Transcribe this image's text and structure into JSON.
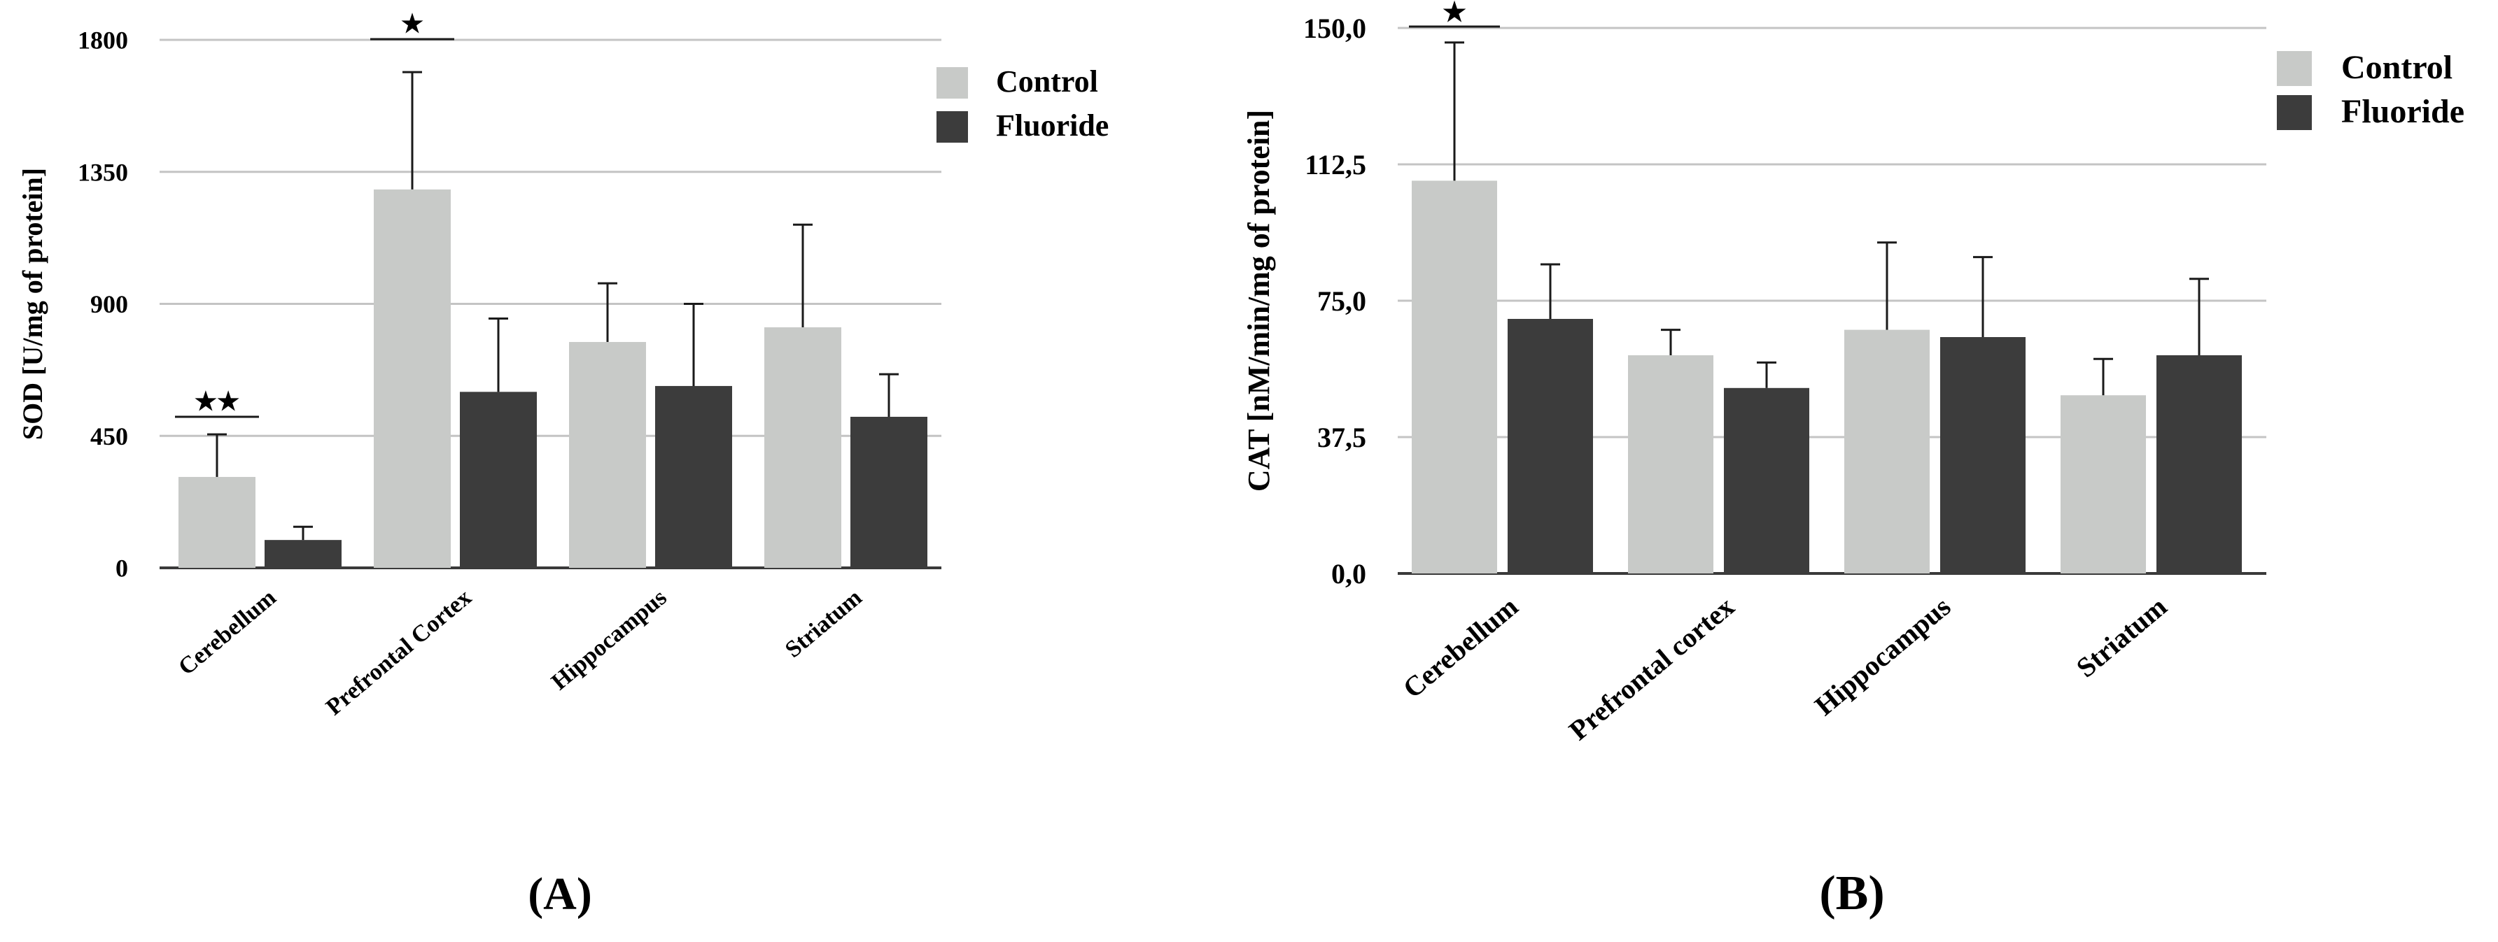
{
  "colors": {
    "control": "#c8cac8",
    "fluoride": "#3c3c3c",
    "grid": "#c4c4c4",
    "axis": "#3a3a3a",
    "error": "#1a1a1a"
  },
  "chart_data": [
    {
      "type": "bar",
      "panel_label": "(A)",
      "panel_letter": "A",
      "title": "",
      "xlabel": "",
      "ylabel": "SOD [U/mg of protein]",
      "ylim": [
        0,
        1800
      ],
      "yticks": [
        0,
        450,
        900,
        1350,
        1800
      ],
      "ytick_labels": [
        "0",
        "450",
        "900",
        "1350",
        "1800"
      ],
      "categories": [
        "Cerebellum",
        "Prefrontal Cortex",
        "Hippocampus",
        "Striatum"
      ],
      "legend_position": "top-right",
      "series": [
        {
          "name": "Control",
          "color_key": "control",
          "values": [
            310,
            1290,
            770,
            820
          ],
          "errors": [
            145,
            400,
            200,
            350
          ]
        },
        {
          "name": "Fluoride",
          "color_key": "fluoride",
          "values": [
            95,
            600,
            620,
            515
          ],
          "errors": [
            45,
            250,
            280,
            145
          ]
        }
      ],
      "significance": [
        {
          "category_index": 0,
          "label": "★★"
        },
        {
          "category_index": 1,
          "label": "★"
        }
      ]
    },
    {
      "type": "bar",
      "panel_label": "(B)",
      "panel_letter": "B",
      "title": "",
      "xlabel": "",
      "ylabel": "CAT [nM/min/mg of protein]",
      "ylim": [
        0,
        150
      ],
      "yticks": [
        0,
        37.5,
        75,
        112.5,
        150
      ],
      "ytick_labels": [
        "0,0",
        "37,5",
        "75,0",
        "112,5",
        "150,0"
      ],
      "categories": [
        "Cerebellum",
        "Prefrontal cortex",
        "Hippocampus",
        "Striatum"
      ],
      "legend_position": "top-right",
      "series": [
        {
          "name": "Control",
          "color_key": "control",
          "values": [
            108,
            60,
            67,
            49
          ],
          "errors": [
            38,
            7,
            24,
            10
          ]
        },
        {
          "name": "Fluoride",
          "color_key": "fluoride",
          "values": [
            70,
            51,
            65,
            60
          ],
          "errors": [
            15,
            7,
            22,
            21
          ]
        }
      ],
      "significance": [
        {
          "category_index": 0,
          "label": "★"
        }
      ]
    }
  ]
}
